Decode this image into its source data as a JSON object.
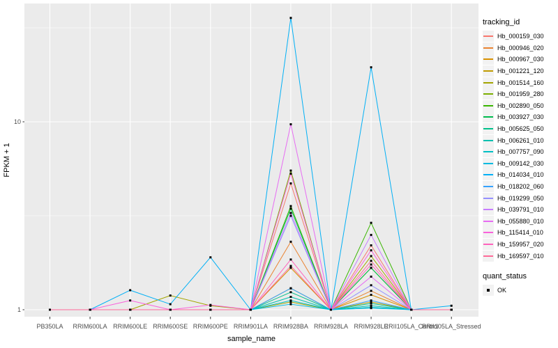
{
  "legend": {
    "tracking_title": "tracking_id",
    "quant_title": "quant_status",
    "quant_ok_label": "OK"
  },
  "chart_data": {
    "type": "line",
    "title": "",
    "xlabel": "sample_name",
    "ylabel": "FPKM + 1",
    "y_scale": "log10",
    "y_ticks": [
      10,
      1
    ],
    "y_minor_gridlines": [
      31.62,
      3.162
    ],
    "ylim": [
      0.92,
      41.6
    ],
    "grid": true,
    "legend_position": "right",
    "legend_title": "tracking_id",
    "panel_bg": "#EBEBEB",
    "grid_color": "#FFFFFF",
    "axis_text_color": "#4D4D4D",
    "point_color": "#000000",
    "point_shape": "square",
    "quant_status": {
      "title": "quant_status",
      "entries": [
        "OK"
      ]
    },
    "categories": [
      "PB350LA",
      "RRIM600LA",
      "RRIM600LE",
      "RRIM600SE",
      "RRIM600PE",
      "RRIM901LA",
      "RRIM928BA",
      "RRIM928LA",
      "RRIM928LE",
      "RRII105LA_Control",
      "RRII105LA_Stressed"
    ],
    "series": [
      {
        "name": "Hb_000159_030",
        "color": "#F8766D",
        "values": [
          1,
          1,
          1,
          1,
          1,
          1,
          4.7,
          1,
          2.2,
          1,
          1
        ]
      },
      {
        "name": "Hb_000946_020",
        "color": "#EA8331",
        "values": [
          1,
          1,
          1,
          1,
          1,
          1,
          2.3,
          1,
          1.26,
          1,
          1
        ]
      },
      {
        "name": "Hb_000967_030",
        "color": "#D89000",
        "values": [
          1,
          1,
          1,
          1,
          1,
          1,
          1.67,
          1,
          1.2,
          1,
          1
        ]
      },
      {
        "name": "Hb_001221_120",
        "color": "#C09B00",
        "values": [
          1,
          1,
          1,
          1,
          1,
          1,
          1.3,
          1,
          1.1,
          1,
          1
        ]
      },
      {
        "name": "Hb_001514_160",
        "color": "#A3A500",
        "values": [
          1,
          1,
          1,
          1.19,
          1.05,
          1,
          1.1,
          1,
          1.93,
          1,
          1
        ]
      },
      {
        "name": "Hb_001959_280",
        "color": "#7CAE00",
        "values": [
          1,
          1,
          1,
          1,
          1,
          1,
          5.5,
          1,
          1.67,
          1,
          1
        ]
      },
      {
        "name": "Hb_002890_050",
        "color": "#39B600",
        "values": [
          1,
          1,
          1,
          1,
          1,
          1,
          3.56,
          1,
          2.9,
          1,
          1
        ]
      },
      {
        "name": "Hb_003927_030",
        "color": "#00BB4E",
        "values": [
          1,
          1,
          1,
          1,
          1,
          1,
          3.45,
          1,
          1.67,
          1,
          1
        ]
      },
      {
        "name": "Hb_005625_050",
        "color": "#00C08B",
        "values": [
          1,
          1,
          1,
          1,
          1,
          1,
          1.24,
          1,
          1.08,
          1,
          1
        ]
      },
      {
        "name": "Hb_006261_010",
        "color": "#00C0AF",
        "values": [
          1,
          1,
          1,
          1,
          1,
          1,
          1.17,
          1,
          1.05,
          1,
          1
        ]
      },
      {
        "name": "Hb_007757_090",
        "color": "#00BFC4",
        "values": [
          1,
          1,
          1,
          1,
          1,
          1,
          1.12,
          1,
          1.03,
          1,
          1
        ]
      },
      {
        "name": "Hb_009142_030",
        "color": "#00BAE0",
        "values": [
          1,
          1,
          1,
          1,
          1,
          1,
          1.07,
          1,
          1.02,
          1,
          1
        ]
      },
      {
        "name": "Hb_014034_010",
        "color": "#00B0F6",
        "values": [
          1,
          1,
          1.27,
          1.07,
          1.9,
          1,
          35.7,
          1,
          19.5,
          1,
          1.05
        ]
      },
      {
        "name": "Hb_018202_060",
        "color": "#35A2FF",
        "values": [
          1,
          1,
          1,
          1,
          1,
          1,
          1.3,
          1,
          1.12,
          1,
          1
        ]
      },
      {
        "name": "Hb_019299_050",
        "color": "#9590FF",
        "values": [
          1,
          1,
          1,
          1,
          1,
          1,
          3.16,
          1,
          1.35,
          1,
          1
        ]
      },
      {
        "name": "Hb_039791_010",
        "color": "#C77CFF",
        "values": [
          1,
          1,
          1,
          1,
          1,
          1,
          3.27,
          1,
          2.5,
          1,
          1
        ]
      },
      {
        "name": "Hb_055880_010",
        "color": "#E76BF3",
        "values": [
          1,
          1,
          1,
          1,
          1,
          1,
          9.7,
          1,
          1.5,
          1,
          1
        ]
      },
      {
        "name": "Hb_115414_010",
        "color": "#FA62DB",
        "values": [
          1,
          1,
          1.12,
          1,
          1.06,
          1,
          5.3,
          1,
          2.07,
          1,
          1
        ]
      },
      {
        "name": "Hb_159957_020",
        "color": "#FF62BC",
        "values": [
          1,
          1,
          1,
          1,
          1,
          1,
          1.85,
          1,
          1.74,
          1,
          1
        ]
      },
      {
        "name": "Hb_169597_010",
        "color": "#FF6A98",
        "values": [
          1,
          1,
          1,
          1,
          1,
          1,
          1.71,
          1,
          1.82,
          1,
          1
        ]
      }
    ]
  }
}
